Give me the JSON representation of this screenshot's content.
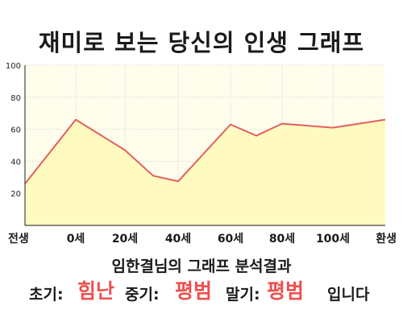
{
  "title": "재미로 보는 당신의 인생 그래프",
  "chart_data": {
    "type": "area",
    "title": "재미로 보는 당신의 인생 그래프",
    "xlabel": "",
    "ylabel": "",
    "x_ticks": [
      "전생",
      "0세",
      "20세",
      "40세",
      "60세",
      "80세",
      "100세",
      "환생"
    ],
    "y_ticks": [
      "20",
      "40",
      "60",
      "80",
      "100"
    ],
    "ylim": [
      0,
      100
    ],
    "grid": true,
    "points": [
      {
        "x": "전생",
        "y": 26
      },
      {
        "x": "0세",
        "y": 66
      },
      {
        "x": "20세",
        "y": 47
      },
      {
        "x": "30세",
        "y": 31
      },
      {
        "x": "40세",
        "y": 27.5
      },
      {
        "x": "60세",
        "y": 63
      },
      {
        "x": "70세",
        "y": 56
      },
      {
        "x": "80세",
        "y": 63.5
      },
      {
        "x": "100세",
        "y": 61
      },
      {
        "x": "환생",
        "y": 66
      }
    ],
    "colors": {
      "line": "#e06060",
      "fill": "#fffac0",
      "plot_bg": "#fffdec",
      "grid": "#cfcfcf",
      "axis": "#444444"
    }
  },
  "analysis": {
    "title": "임한결님의 그래프 분석결과",
    "early_label": "초기:",
    "early_value": "힘난",
    "middle_label": "중기:",
    "middle_value": "평범",
    "late_label": "말기:",
    "late_value": "평범",
    "ending": "입니다"
  }
}
